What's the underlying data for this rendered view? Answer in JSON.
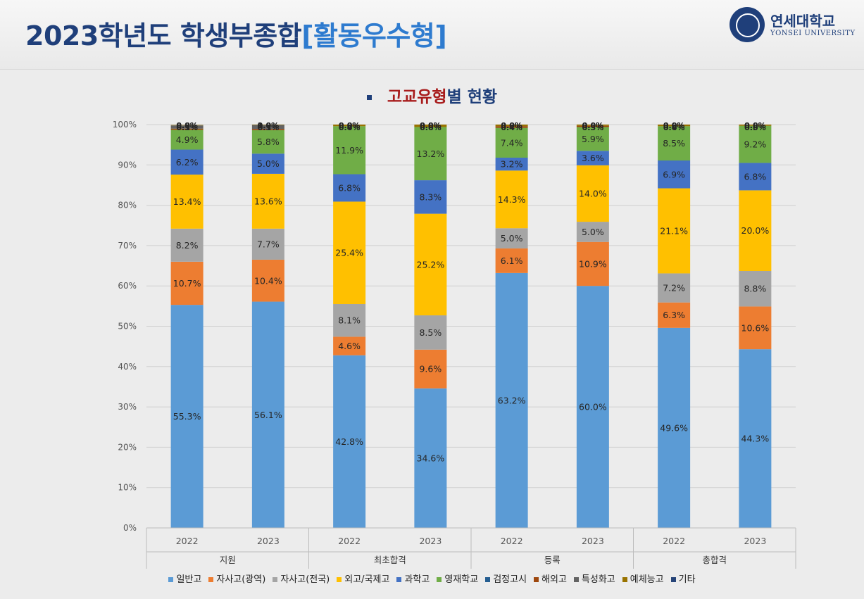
{
  "header": {
    "title_main": "2023학년도 학생부종합",
    "title_accent": "[활동우수형]",
    "logo_name": "연세대학교",
    "logo_eng": "YONSEI UNIVERSITY"
  },
  "subtitle": {
    "highlight": "고교유형",
    "rest": "별 현황"
  },
  "chart_data": {
    "type": "bar",
    "stacked": true,
    "percent": true,
    "categories": [
      "2022",
      "2023",
      "2022",
      "2023",
      "2022",
      "2023",
      "2022",
      "2023"
    ],
    "groups": [
      {
        "label": "지원",
        "categories": [
          "2022",
          "2023"
        ]
      },
      {
        "label": "최초합격",
        "categories": [
          "2022",
          "2023"
        ]
      },
      {
        "label": "등록",
        "categories": [
          "2022",
          "2023"
        ]
      },
      {
        "label": "총합격",
        "categories": [
          "2022",
          "2023"
        ]
      }
    ],
    "ylim": [
      0,
      100
    ],
    "yticks": [
      "0%",
      "10%",
      "20%",
      "30%",
      "40%",
      "50%",
      "60%",
      "70%",
      "80%",
      "90%",
      "100%"
    ],
    "grid": true,
    "legend_position": "bottom",
    "series": [
      {
        "name": "일반고",
        "color": "#5b9bd5",
        "values": [
          55.3,
          56.1,
          42.8,
          34.6,
          63.2,
          60.0,
          49.6,
          44.3
        ]
      },
      {
        "name": "자사고(광역)",
        "color": "#ed7d31",
        "values": [
          10.7,
          10.4,
          4.6,
          9.6,
          6.1,
          10.9,
          6.3,
          10.6
        ]
      },
      {
        "name": "자사고(전국)",
        "color": "#a5a5a5",
        "values": [
          8.2,
          7.7,
          8.1,
          8.5,
          5.0,
          5.0,
          7.2,
          8.8
        ]
      },
      {
        "name": "외고/국제고",
        "color": "#ffc000",
        "values": [
          13.4,
          13.6,
          25.4,
          25.2,
          14.3,
          14.0,
          21.1,
          20.0
        ]
      },
      {
        "name": "과학고",
        "color": "#4472c4",
        "values": [
          6.2,
          5.0,
          6.8,
          8.3,
          3.2,
          3.6,
          6.9,
          6.8
        ]
      },
      {
        "name": "영재학교",
        "color": "#70ad47",
        "values": [
          4.9,
          5.8,
          11.9,
          13.2,
          7.4,
          5.9,
          8.5,
          9.2
        ]
      },
      {
        "name": "검정고시",
        "color": "#255e91",
        "values": [
          0.0,
          0.0,
          0.0,
          0.0,
          0.0,
          0.0,
          0.0,
          0.0
        ]
      },
      {
        "name": "해외고",
        "color": "#9e480e",
        "values": [
          0.3,
          0.3,
          0.0,
          0.0,
          0.4,
          0.3,
          0.0,
          0.0
        ]
      },
      {
        "name": "특성화고",
        "color": "#636363",
        "values": [
          0.8,
          1.0,
          0.0,
          0.0,
          0.0,
          0.0,
          0.0,
          0.0
        ]
      },
      {
        "name": "예체능고",
        "color": "#997300",
        "values": [
          0.1,
          0.1,
          0.4,
          0.6,
          0.4,
          0.3,
          0.4,
          0.3
        ]
      },
      {
        "name": "기타",
        "color": "#264478",
        "values": [
          0.0,
          0.0,
          0.0,
          0.0,
          0.0,
          0.0,
          0.0,
          0.0
        ]
      }
    ]
  }
}
